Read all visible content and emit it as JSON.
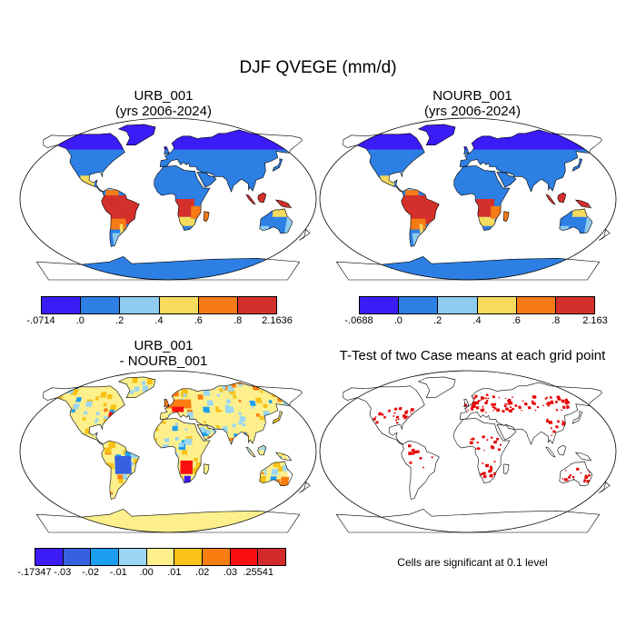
{
  "title": "DJF QVEGE (mm/d)",
  "panels": {
    "urb": {
      "name": "URB_001",
      "years": "(yrs 2006-2024)"
    },
    "nourb": {
      "name": "NOURB_001",
      "years": "(yrs 2006-2024)"
    },
    "diff": {
      "line1": "URB_001",
      "line2": "- NOURB_001"
    },
    "ttest": {
      "title": "T-Test of two Case means at each grid point",
      "note": "Cells are significant at 0.1 level"
    }
  },
  "colorbars": {
    "urb": {
      "colors": [
        "#3b1cf7",
        "#2d7fe3",
        "#8ecbee",
        "#f6dc5c",
        "#f67a16",
        "#d4302b"
      ],
      "labels": [
        "-.0714",
        ".0",
        ".2",
        ".4",
        ".6",
        ".8",
        "2.1636"
      ]
    },
    "nourb": {
      "colors": [
        "#3b1cf7",
        "#2d7fe3",
        "#8ecbee",
        "#f6dc5c",
        "#f67a16",
        "#d4302b"
      ],
      "labels": [
        "-.0688",
        ".0",
        ".2",
        ".4",
        ".6",
        ".8",
        "2.163"
      ]
    },
    "diff": {
      "colors": [
        "#3b1cf7",
        "#3561e0",
        "#1c9ff1",
        "#9bd7f2",
        "#fdf08c",
        "#f8c216",
        "#f87e12",
        "#f90f0f",
        "#d22a2a"
      ],
      "labels": [
        "-.17347",
        "-.03",
        "-.02",
        "-.01",
        ".00",
        ".01",
        ".02",
        ".03",
        ".25541"
      ]
    }
  },
  "colors": {
    "ocean": "#ffffff",
    "outline": "#000000",
    "significant": "#e60000"
  }
}
